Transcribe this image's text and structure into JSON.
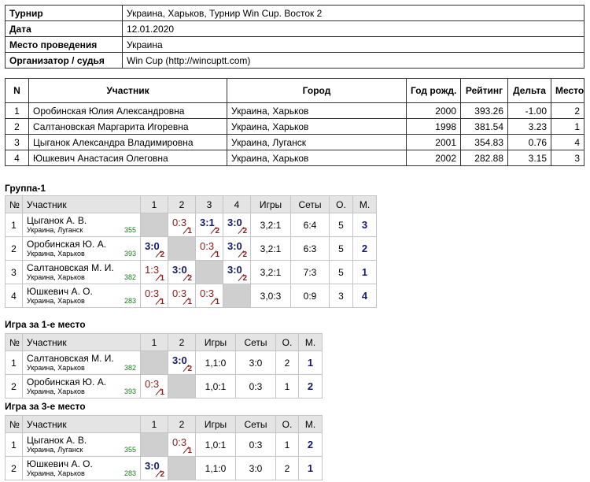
{
  "info": [
    {
      "label": "Турнир",
      "value": "Украина, Харьков, Турнир Win Cup. Восток 2"
    },
    {
      "label": "Дата",
      "value": "12.01.2020"
    },
    {
      "label": "Место проведения",
      "value": "Украина"
    },
    {
      "label": "Организатор / судья",
      "value": "Win Cup (http://wincuptt.com)"
    }
  ],
  "participants": {
    "headers": [
      "N",
      "Участник",
      "Город",
      "Год рожд.",
      "Рейтинг",
      "Дельта",
      "Место"
    ],
    "rows": [
      [
        "1",
        "Оробинская Юлия Александровна",
        "Украина, Харьков",
        "2000",
        "393.26",
        "-1.00",
        "2"
      ],
      [
        "2",
        "Салтановская Маргарита Игоревна",
        "Украина, Харьков",
        "1998",
        "381.54",
        "3.23",
        "1"
      ],
      [
        "3",
        "Цыганок Александра Владимировна",
        "Украина, Луганск",
        "2001",
        "354.83",
        "0.76",
        "4"
      ],
      [
        "4",
        "Юшкевич Анастасия Олеговна",
        "Украина, Харьков",
        "2002",
        "282.88",
        "3.15",
        "3"
      ]
    ]
  },
  "groups": [
    {
      "title": "Группа-1",
      "headers": [
        "№",
        "Участник",
        "1",
        "2",
        "3",
        "4",
        "Игры",
        "Сеты",
        "О.",
        "М."
      ],
      "rows": [
        {
          "n": "1",
          "name": "Цыганок А. В.",
          "city": "Украина, Луганск",
          "rating": "355",
          "results": [
            null,
            {
              "score": "0:3",
              "points": "1"
            },
            {
              "score": "3:1",
              "points": "2"
            },
            {
              "score": "3:0",
              "points": "2"
            }
          ],
          "games": "3,2:1",
          "sets": "6:4",
          "points": "5",
          "place": "3"
        },
        {
          "n": "2",
          "name": "Оробинская Ю. А.",
          "city": "Украина, Харьков",
          "rating": "393",
          "results": [
            {
              "score": "3:0",
              "points": "2"
            },
            null,
            {
              "score": "0:3",
              "points": "1"
            },
            {
              "score": "3:0",
              "points": "2"
            }
          ],
          "games": "3,2:1",
          "sets": "6:3",
          "points": "5",
          "place": "2"
        },
        {
          "n": "3",
          "name": "Салтановская М. И.",
          "city": "Украина, Харьков",
          "rating": "382",
          "results": [
            {
              "score": "1:3",
              "points": "1"
            },
            {
              "score": "3:0",
              "points": "2"
            },
            null,
            {
              "score": "3:0",
              "points": "2"
            }
          ],
          "games": "3,2:1",
          "sets": "7:3",
          "points": "5",
          "place": "1"
        },
        {
          "n": "4",
          "name": "Юшкевич А. О.",
          "city": "Украина, Харьков",
          "rating": "283",
          "results": [
            {
              "score": "0:3",
              "points": "1"
            },
            {
              "score": "0:3",
              "points": "1"
            },
            {
              "score": "0:3",
              "points": "1"
            },
            null
          ],
          "games": "3,0:3",
          "sets": "0:9",
          "points": "3",
          "place": "4"
        }
      ]
    },
    {
      "title": "Игра за 1-е место",
      "headers": [
        "№",
        "Участник",
        "1",
        "2",
        "Игры",
        "Сеты",
        "О.",
        "М."
      ],
      "rows": [
        {
          "n": "1",
          "name": "Салтановская М. И.",
          "city": "Украина, Харьков",
          "rating": "382",
          "results": [
            null,
            {
              "score": "3:0",
              "points": "2"
            }
          ],
          "games": "1,1:0",
          "sets": "3:0",
          "points": "2",
          "place": "1"
        },
        {
          "n": "2",
          "name": "Оробинская Ю. А.",
          "city": "Украина, Харьков",
          "rating": "393",
          "results": [
            {
              "score": "0:3",
              "points": "1"
            },
            null
          ],
          "games": "1,0:1",
          "sets": "0:3",
          "points": "1",
          "place": "2"
        }
      ]
    },
    {
      "title": "Игра за 3-е место",
      "headers": [
        "№",
        "Участник",
        "1",
        "2",
        "Игры",
        "Сеты",
        "О.",
        "М."
      ],
      "rows": [
        {
          "n": "1",
          "name": "Цыганок А. В.",
          "city": "Украина, Луганск",
          "rating": "355",
          "results": [
            null,
            {
              "score": "0:3",
              "points": "1"
            }
          ],
          "games": "1,0:1",
          "sets": "0:3",
          "points": "1",
          "place": "2"
        },
        {
          "n": "2",
          "name": "Юшкевич А. О.",
          "city": "Украина, Харьков",
          "rating": "283",
          "results": [
            {
              "score": "3:0",
              "points": "2"
            },
            null
          ],
          "games": "1,1:0",
          "sets": "3:0",
          "points": "2",
          "place": "1"
        }
      ]
    }
  ]
}
